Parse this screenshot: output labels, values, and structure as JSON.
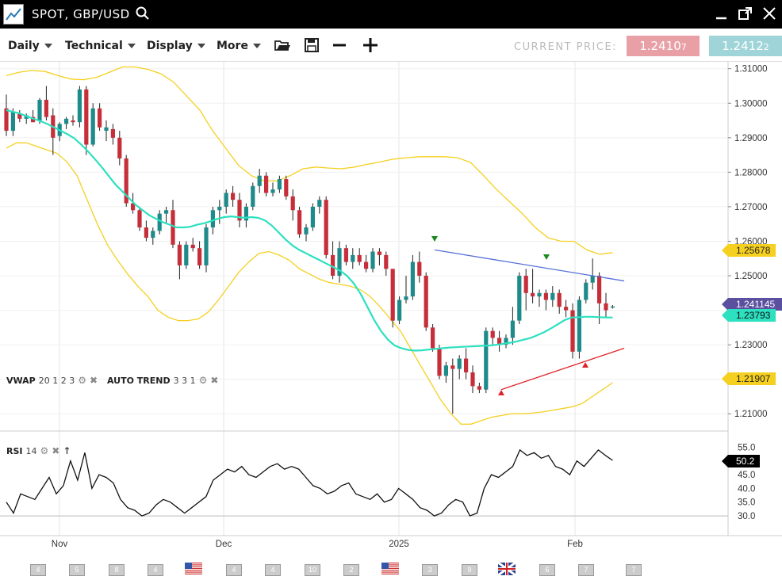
{
  "window": {
    "title": "SPOT, GBP/USD"
  },
  "toolbar": {
    "daily": "Daily",
    "technical": "Technical",
    "display": "Display",
    "more": "More",
    "current_price_label": "CURRENT PRICE:",
    "bid_main": "1.2410",
    "bid_pip": "7",
    "ask_main": "1.2412",
    "ask_pip": "2"
  },
  "indicators": {
    "vwap_name": "VWAP",
    "vwap_params": "20 1 2 3",
    "autotrend_name": "AUTO TREND",
    "autotrend_params": "3 3 1",
    "rsi_name": "RSI",
    "rsi_params": "14"
  },
  "price_axis": [
    "1.31000",
    "1.30000",
    "1.29000",
    "1.28000",
    "1.27000",
    "1.26000",
    "1.25000",
    "1.24000",
    "1.23000",
    "1.22000",
    "1.21000"
  ],
  "price_tags": {
    "upper_band": "1.25678",
    "last": "1.241145",
    "vwap": "1.23793",
    "lower_band": "1.21907"
  },
  "rsi_axis": [
    "55.0",
    "50.0",
    "45.0",
    "40.0",
    "35.0",
    "30.0"
  ],
  "rsi_tag": "50.2",
  "time_axis": [
    "Nov",
    "Dec",
    "2025",
    "Feb"
  ],
  "calendar": [
    "4",
    "5",
    "8",
    "4",
    "4",
    "4",
    "10",
    "2",
    "3",
    "9",
    "6",
    "7",
    "7"
  ],
  "colors": {
    "bull": "#1f8a8a",
    "bear": "#c62f3a",
    "vwap": "#2de0c0",
    "bands": "#f5d020",
    "bid_bg": "#e8a0a6",
    "ask_bg": "#9fd4d8",
    "last_tag": "#5b4fa0",
    "trend_up": "#e0232a",
    "trend_down": "#5470d8"
  },
  "chart_data": {
    "type": "candlestick",
    "title": "SPOT, GBP/USD",
    "ylim": [
      1.205,
      1.312
    ],
    "candles": [
      [
        1.2985,
        1.3025,
        1.2905,
        1.292
      ],
      [
        1.292,
        1.2985,
        1.2905,
        1.2975
      ],
      [
        1.297,
        1.298,
        1.2945,
        1.2955
      ],
      [
        1.2955,
        1.297,
        1.294,
        1.2965
      ],
      [
        1.296,
        1.298,
        1.2945,
        1.2945
      ],
      [
        1.295,
        1.3015,
        1.294,
        1.301
      ],
      [
        1.301,
        1.305,
        1.295,
        1.296
      ],
      [
        1.2965,
        1.2985,
        1.285,
        1.29
      ],
      [
        1.2905,
        1.2945,
        1.289,
        1.294
      ],
      [
        1.294,
        1.296,
        1.2925,
        1.2955
      ],
      [
        1.295,
        1.2965,
        1.2935,
        1.2945
      ],
      [
        1.2945,
        1.305,
        1.293,
        1.304
      ],
      [
        1.304,
        1.305,
        1.285,
        1.288
      ],
      [
        1.288,
        1.3,
        1.2875,
        1.2985
      ],
      [
        1.2985,
        1.3,
        1.292,
        1.293
      ],
      [
        1.292,
        1.295,
        1.289,
        1.293
      ],
      [
        1.2925,
        1.294,
        1.288,
        1.29
      ],
      [
        1.29,
        1.292,
        1.282,
        1.284
      ],
      [
        1.284,
        1.285,
        1.27,
        1.271
      ],
      [
        1.271,
        1.274,
        1.268,
        1.269
      ],
      [
        1.269,
        1.27,
        1.263,
        1.264
      ],
      [
        1.264,
        1.266,
        1.26,
        1.261
      ],
      [
        1.261,
        1.264,
        1.259,
        1.263
      ],
      [
        1.263,
        1.269,
        1.262,
        1.268
      ],
      [
        1.268,
        1.27,
        1.265,
        1.269
      ],
      [
        1.269,
        1.272,
        1.258,
        1.259
      ],
      [
        1.259,
        1.26,
        1.249,
        1.253
      ],
      [
        1.253,
        1.26,
        1.252,
        1.259
      ],
      [
        1.259,
        1.261,
        1.257,
        1.258
      ],
      [
        1.258,
        1.26,
        1.252,
        1.253
      ],
      [
        1.253,
        1.265,
        1.251,
        1.264
      ],
      [
        1.264,
        1.27,
        1.262,
        1.269
      ],
      [
        1.269,
        1.272,
        1.265,
        1.27
      ],
      [
        1.27,
        1.275,
        1.268,
        1.274
      ],
      [
        1.274,
        1.276,
        1.27,
        1.272
      ],
      [
        1.272,
        1.274,
        1.264,
        1.266
      ],
      [
        1.266,
        1.271,
        1.264,
        1.27
      ],
      [
        1.27,
        1.277,
        1.269,
        1.276
      ],
      [
        1.276,
        1.281,
        1.274,
        1.279
      ],
      [
        1.279,
        1.28,
        1.273,
        1.274
      ],
      [
        1.274,
        1.277,
        1.273,
        1.275
      ],
      [
        1.275,
        1.279,
        1.274,
        1.278
      ],
      [
        1.278,
        1.279,
        1.272,
        1.273
      ],
      [
        1.273,
        1.275,
        1.266,
        1.269
      ],
      [
        1.269,
        1.27,
        1.261,
        1.262
      ],
      [
        1.262,
        1.265,
        1.26,
        1.264
      ],
      [
        1.264,
        1.271,
        1.263,
        1.27
      ],
      [
        1.27,
        1.273,
        1.268,
        1.272
      ],
      [
        1.272,
        1.273,
        1.255,
        1.256
      ],
      [
        1.256,
        1.26,
        1.249,
        1.25
      ],
      [
        1.25,
        1.26,
        1.248,
        1.258
      ],
      [
        1.258,
        1.259,
        1.253,
        1.254
      ],
      [
        1.254,
        1.258,
        1.252,
        1.256
      ],
      [
        1.256,
        1.258,
        1.253,
        1.254
      ],
      [
        1.254,
        1.256,
        1.251,
        1.252
      ],
      [
        1.252,
        1.258,
        1.251,
        1.257
      ],
      [
        1.257,
        1.258,
        1.253,
        1.256
      ],
      [
        1.256,
        1.257,
        1.25,
        1.252
      ],
      [
        1.252,
        1.252,
        1.235,
        1.237
      ],
      [
        1.237,
        1.244,
        1.236,
        1.243
      ],
      [
        1.243,
        1.25,
        1.242,
        1.244
      ],
      [
        1.244,
        1.256,
        1.243,
        1.254
      ],
      [
        1.254,
        1.257,
        1.248,
        1.25
      ],
      [
        1.25,
        1.251,
        1.234,
        1.235
      ],
      [
        1.235,
        1.236,
        1.228,
        1.229
      ],
      [
        1.229,
        1.23,
        1.22,
        1.221
      ],
      [
        1.221,
        1.225,
        1.219,
        1.224
      ],
      [
        1.224,
        1.226,
        1.21,
        1.223
      ],
      [
        1.223,
        1.227,
        1.22,
        1.226
      ],
      [
        1.226,
        1.229,
        1.22,
        1.222
      ],
      [
        1.222,
        1.224,
        1.216,
        1.218
      ],
      [
        1.218,
        1.219,
        1.216,
        1.217
      ],
      [
        1.217,
        1.235,
        1.216,
        1.234
      ],
      [
        1.234,
        1.235,
        1.23,
        1.232
      ],
      [
        1.232,
        1.234,
        1.228,
        1.23
      ],
      [
        1.23,
        1.233,
        1.229,
        1.232
      ],
      [
        1.232,
        1.241,
        1.23,
        1.237
      ],
      [
        1.237,
        1.251,
        1.236,
        1.25
      ],
      [
        1.25,
        1.252,
        1.24,
        1.245
      ],
      [
        1.245,
        1.252,
        1.242,
        1.244
      ],
      [
        1.244,
        1.246,
        1.241,
        1.245
      ],
      [
        1.245,
        1.246,
        1.24,
        1.243
      ],
      [
        1.243,
        1.247,
        1.241,
        1.245
      ],
      [
        1.245,
        1.246,
        1.239,
        1.241
      ],
      [
        1.241,
        1.243,
        1.238,
        1.24
      ],
      [
        1.24,
        1.242,
        1.226,
        1.228
      ],
      [
        1.228,
        1.244,
        1.226,
        1.243
      ],
      [
        1.243,
        1.249,
        1.242,
        1.248
      ],
      [
        1.248,
        1.255,
        1.246,
        1.25
      ],
      [
        1.25,
        1.251,
        1.236,
        1.242
      ],
      [
        1.242,
        1.245,
        1.238,
        1.24
      ],
      [
        1.241,
        1.2415,
        1.2405,
        1.2411
      ]
    ],
    "vwap": [
      1.298,
      1.2975,
      1.297,
      1.2962,
      1.2955,
      1.2948,
      1.294,
      1.293,
      1.292,
      1.291,
      1.2898,
      1.288,
      1.286,
      1.2838,
      1.2815,
      1.279,
      1.2765,
      1.2745,
      1.2725,
      1.2705,
      1.269,
      1.2675,
      1.2665,
      1.2655,
      1.2648,
      1.264,
      1.264,
      1.2642,
      1.2648,
      1.2652,
      1.2658,
      1.2665,
      1.267,
      1.2672,
      1.267,
      1.2668,
      1.267,
      1.2668,
      1.266,
      1.2645,
      1.2625,
      1.2605,
      1.2588,
      1.2575,
      1.2565,
      1.2555,
      1.2545,
      1.2535,
      1.2525,
      1.2515,
      1.25,
      1.2478,
      1.2448,
      1.241,
      1.2372,
      1.234,
      1.2315,
      1.2298,
      1.229,
      1.2285,
      1.2283,
      1.2284,
      1.2286,
      1.2288,
      1.229,
      1.2292,
      1.2293,
      1.2294,
      1.2295,
      1.2296,
      1.2297,
      1.2298,
      1.23,
      1.2303,
      1.2306,
      1.231,
      1.2315,
      1.232,
      1.2328,
      1.2337,
      1.2348,
      1.236,
      1.2372,
      1.2379,
      1.238,
      1.2381,
      1.2381,
      1.238,
      1.2379,
      1.2379
    ],
    "upper_band": [
      1.308,
      1.309,
      1.3095,
      1.3092,
      1.308,
      1.307,
      1.3068,
      1.3075,
      1.309,
      1.3105,
      1.3105,
      1.3098,
      1.3085,
      1.306,
      1.302,
      1.298,
      1.292,
      1.287,
      1.282,
      1.279,
      1.2775,
      1.2775,
      1.279,
      1.281,
      1.2815,
      1.2812,
      1.281,
      1.2815,
      1.2823,
      1.283,
      1.2838,
      1.2842,
      1.2845,
      1.2845,
      1.2845,
      1.2842,
      1.2828,
      1.279,
      1.275,
      1.2715,
      1.268,
      1.264,
      1.261,
      1.26,
      1.26,
      1.2575,
      1.2562,
      1.2567
    ],
    "lower_band": [
      1.287,
      1.2885,
      1.2885,
      1.2875,
      1.2865,
      1.2855,
      1.283,
      1.279,
      1.272,
      1.265,
      1.259,
      1.2545,
      1.2505,
      1.247,
      1.244,
      1.24,
      1.238,
      1.237,
      1.237,
      1.2375,
      1.2395,
      1.243,
      1.247,
      1.251,
      1.254,
      1.2565,
      1.257,
      1.256,
      1.2545,
      1.252,
      1.2505,
      1.249,
      1.248,
      1.2475,
      1.247,
      1.246,
      1.244,
      1.241,
      1.2375,
      1.234,
      1.229,
      1.224,
      1.219,
      1.214,
      1.21,
      1.207,
      1.207,
      1.208,
      1.209,
      1.2095,
      1.21,
      1.21,
      1.2102,
      1.2105,
      1.211,
      1.2115,
      1.212,
      1.213,
      1.215,
      1.217,
      1.219
    ],
    "trendline_upper": {
      "from": 1.2575,
      "to": 1.2485
    },
    "trendline_lower": {
      "from": 1.217,
      "to": 1.229
    },
    "rsi_ylim": [
      28,
      58
    ],
    "rsi": [
      35,
      31,
      38,
      37,
      36,
      40,
      44,
      38,
      41,
      50,
      43,
      53,
      40,
      45,
      44,
      42,
      36,
      33,
      32,
      30,
      31,
      34,
      36,
      35,
      33,
      31,
      33,
      35,
      37,
      43,
      45,
      47,
      46,
      48,
      45,
      44,
      46,
      48,
      49,
      47,
      48,
      47,
      44,
      41,
      40,
      38,
      39,
      41,
      42,
      38,
      37,
      36,
      38,
      35,
      36,
      40,
      38,
      36,
      33,
      32,
      30,
      31,
      34,
      36,
      35,
      30,
      31,
      40,
      45,
      44,
      46,
      48,
      54,
      52,
      53,
      51,
      52,
      48,
      47,
      45,
      50,
      48,
      51,
      54,
      52,
      50.2
    ]
  }
}
